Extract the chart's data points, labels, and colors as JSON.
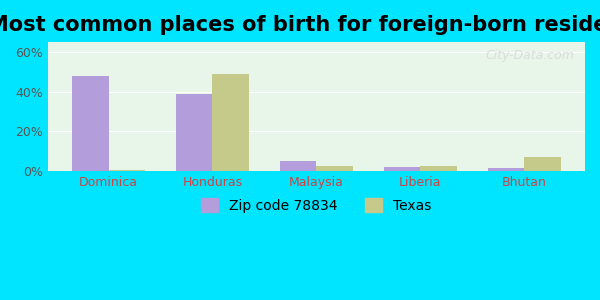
{
  "title": "Most common places of birth for foreign-born residents",
  "categories": [
    "Dominica",
    "Honduras",
    "Malaysia",
    "Liberia",
    "Bhutan"
  ],
  "zip_values": [
    48,
    39,
    5,
    2,
    1.5
  ],
  "texas_values": [
    0.5,
    49,
    2.5,
    2.5,
    7
  ],
  "zip_color": "#b39ddb",
  "texas_color": "#c5c98a",
  "background_color": "#e8f5e9",
  "outer_background": "#00e5ff",
  "ylabel_ticks": [
    "0%",
    "20%",
    "40%",
    "60%"
  ],
  "ytick_values": [
    0,
    20,
    40,
    60
  ],
  "ylim": [
    0,
    65
  ],
  "legend_zip": "Zip code 78834",
  "legend_texas": "Texas",
  "bar_width": 0.35,
  "title_fontsize": 15,
  "tick_fontsize": 9,
  "legend_fontsize": 10
}
